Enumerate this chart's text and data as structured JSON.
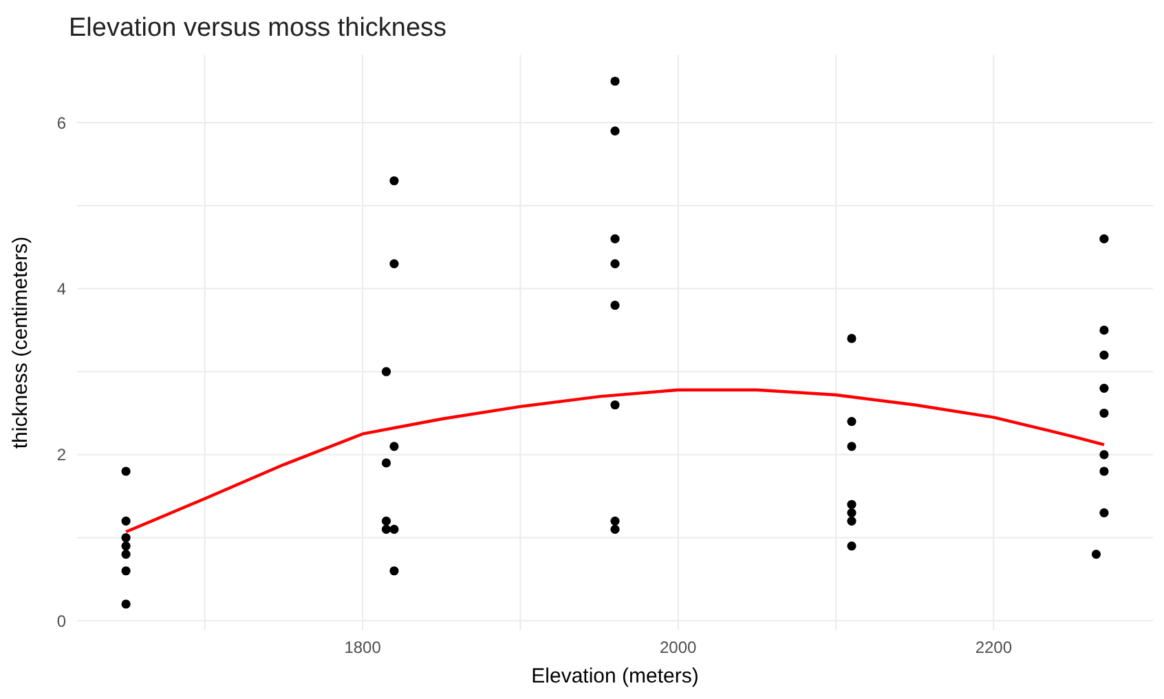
{
  "chart_data": {
    "type": "scatter",
    "title": "Elevation versus moss thickness",
    "xlabel": "Elevation (meters)",
    "ylabel": "thickness (centimeters)",
    "xlim": [
      1619,
      2301
    ],
    "ylim": [
      -0.115,
      6.815
    ],
    "xticks": [
      {
        "value": 1700,
        "label": null
      },
      1800,
      {
        "value": 1900,
        "label": null
      },
      2000,
      {
        "value": 2100,
        "label": null
      },
      2200
    ],
    "yticks": [
      0,
      {
        "value": 1,
        "label": null
      },
      2,
      {
        "value": 3,
        "label": null
      },
      4,
      {
        "value": 5,
        "label": null
      },
      6
    ],
    "grid": true,
    "marker": "circle",
    "series": [
      {
        "color": "#000000",
        "x": [
          1650,
          1650,
          1650,
          1650,
          1650,
          1650,
          1650,
          1820,
          1820,
          1815,
          1820,
          1815,
          1815,
          1815,
          1820,
          1820,
          1960,
          1960,
          1960,
          1960,
          1960,
          1960,
          1960,
          1960,
          2110,
          2110,
          2110,
          2110,
          2110,
          2110,
          2110,
          2270,
          2270,
          2270,
          2270,
          2270,
          2270,
          2270,
          2270,
          2265
        ],
        "values": [
          1.8,
          1.2,
          1.0,
          0.9,
          0.8,
          0.6,
          0.2,
          5.3,
          4.3,
          3.0,
          2.1,
          1.9,
          1.2,
          1.1,
          1.1,
          0.6,
          6.5,
          5.9,
          4.6,
          4.3,
          3.8,
          2.6,
          1.2,
          1.1,
          3.4,
          2.4,
          2.1,
          1.4,
          1.3,
          1.2,
          0.9,
          4.6,
          3.5,
          3.2,
          2.8,
          2.5,
          2.0,
          1.8,
          1.3,
          0.8
        ]
      },
      {
        "type": "line",
        "color": "#ff0000",
        "marker": "none",
        "x": [
          1650,
          1700,
          1750,
          1800,
          1850,
          1900,
          1950,
          2000,
          2050,
          2100,
          2150,
          2200,
          2250,
          2270
        ],
        "values": [
          1.07,
          1.47,
          1.88,
          2.25,
          2.43,
          2.58,
          2.7,
          2.78,
          2.78,
          2.72,
          2.6,
          2.45,
          2.22,
          2.12
        ]
      }
    ]
  }
}
